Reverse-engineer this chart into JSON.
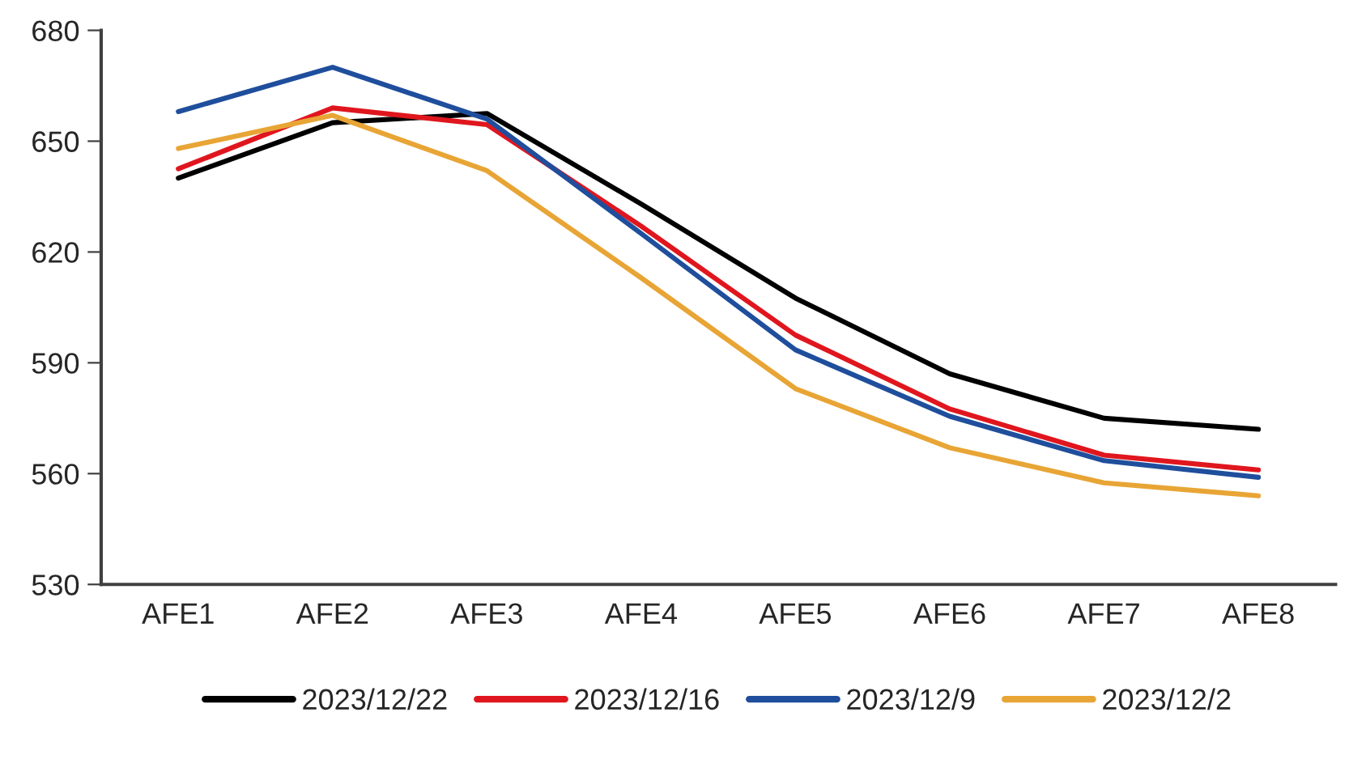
{
  "chart_data": {
    "type": "line",
    "categories": [
      "AFE1",
      "AFE2",
      "AFE3",
      "AFE4",
      "AFE5",
      "AFE6",
      "AFE7",
      "AFE8"
    ],
    "series": [
      {
        "name": "2023/12/22",
        "color": "#000000",
        "values": [
          640,
          655,
          657.5,
          633,
          607.5,
          587,
          575,
          572
        ]
      },
      {
        "name": "2023/12/16",
        "color": "#e0161e",
        "values": [
          642.5,
          659,
          654.5,
          627,
          597.5,
          577.5,
          565,
          561
        ]
      },
      {
        "name": "2023/12/9",
        "color": "#1f4e9c",
        "values": [
          658,
          670,
          656,
          625,
          593.5,
          575.5,
          563.5,
          559
        ]
      },
      {
        "name": "2023/12/2",
        "color": "#e8a535",
        "values": [
          648,
          657,
          642,
          613,
          583,
          567,
          557.5,
          554
        ]
      }
    ],
    "ylim": [
      530,
      680
    ],
    "yticks": [
      530,
      560,
      590,
      620,
      650,
      680
    ],
    "grid": false,
    "legend": "bottom",
    "marker": "none",
    "line_style": "solid"
  }
}
